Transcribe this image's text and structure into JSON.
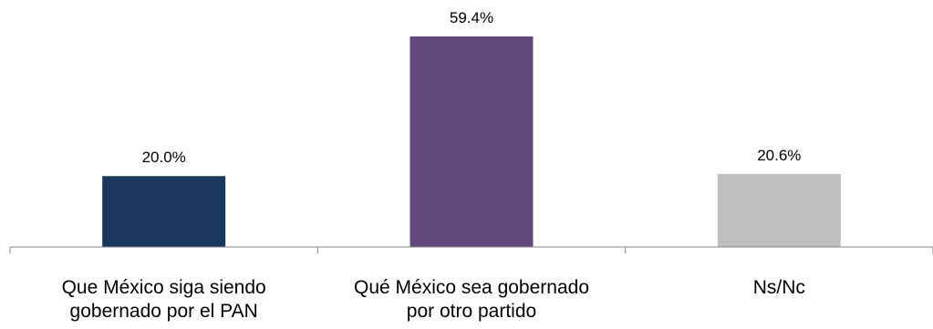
{
  "chart_data": {
    "type": "bar",
    "title": "",
    "xlabel": "",
    "ylabel": "",
    "ylim": [
      0,
      60
    ],
    "grid": false,
    "legend": "none",
    "value_format": "{v}%",
    "categories": [
      [
        "Que México siga siendo",
        "gobernado por el PAN"
      ],
      [
        "Qué México sea gobernado",
        "por otro partido"
      ],
      [
        "Ns/Nc"
      ]
    ],
    "values": [
      20.0,
      59.4,
      20.6
    ],
    "colors": [
      "#1a375e",
      "#614a7b",
      "#bfbfbf"
    ]
  }
}
